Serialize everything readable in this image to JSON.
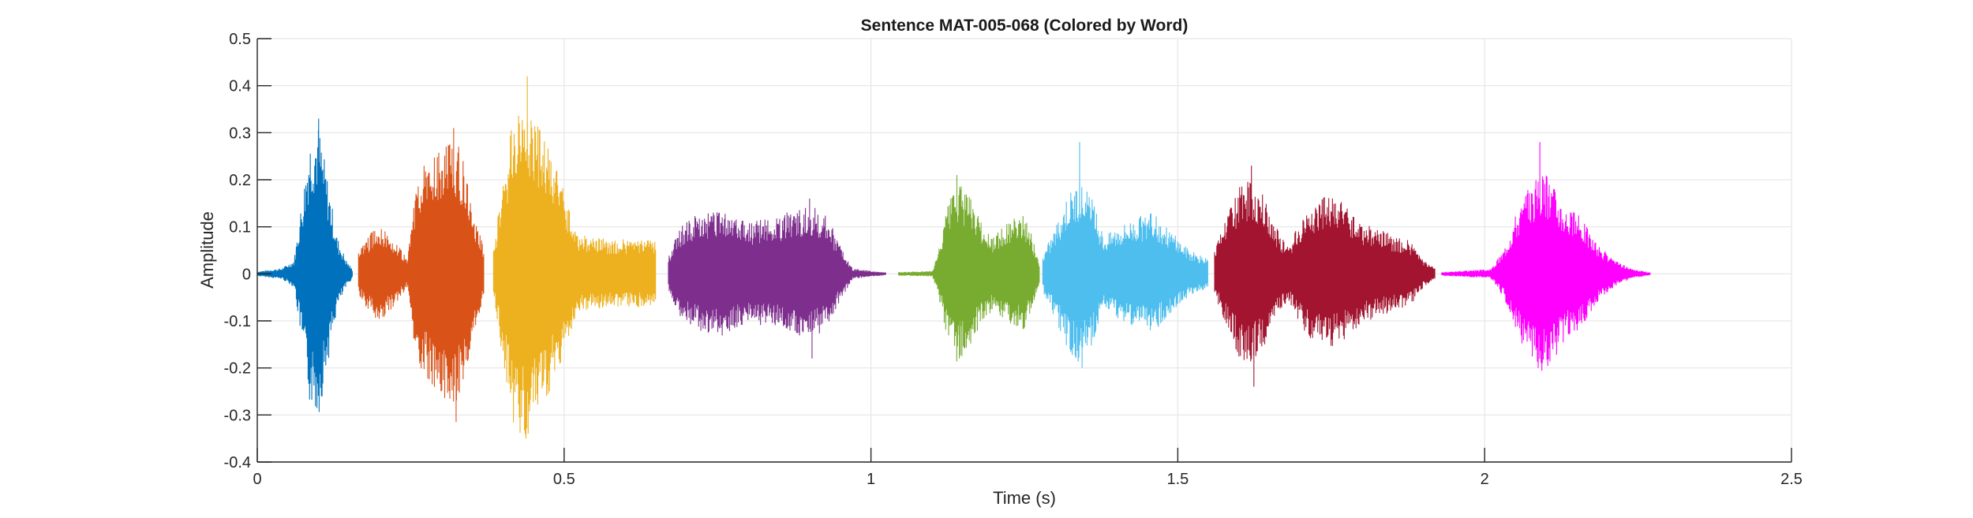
{
  "chart_data": {
    "type": "line",
    "title": "Sentence MAT-005-068 (Colored by Word)",
    "xlabel": "Time (s)",
    "ylabel": "Amplitude",
    "xlim": [
      0,
      2.5
    ],
    "ylim": [
      -0.4,
      0.5
    ],
    "xticks": [
      0,
      0.5,
      1,
      1.5,
      2,
      2.5
    ],
    "xtick_labels": [
      "0",
      "0.5",
      "1",
      "1.5",
      "2",
      "2.5"
    ],
    "yticks": [
      -0.4,
      -0.3,
      -0.2,
      -0.1,
      0,
      0.1,
      0.2,
      0.3,
      0.4,
      0.5
    ],
    "ytick_labels": [
      "-0.4",
      "-0.3",
      "-0.2",
      "-0.1",
      "0",
      "0.1",
      "0.2",
      "0.3",
      "0.4",
      "0.5"
    ],
    "grid": true,
    "series": [
      {
        "color": "#0072BD",
        "t_start": 0.0,
        "t_end": 0.155,
        "envelope": [
          [
            0.0,
            0.005
          ],
          [
            0.04,
            0.012
          ],
          [
            0.06,
            0.03
          ],
          [
            0.075,
            0.18
          ],
          [
            0.085,
            0.29
          ],
          [
            0.1,
            0.32
          ],
          [
            0.115,
            0.2
          ],
          [
            0.13,
            0.08
          ],
          [
            0.145,
            0.03
          ],
          [
            0.155,
            0.01
          ]
        ],
        "peak_max": 0.33,
        "peak_min": -0.23
      },
      {
        "color": "#D95319",
        "t_start": 0.165,
        "t_end": 0.37,
        "envelope": [
          [
            0.165,
            0.05
          ],
          [
            0.18,
            0.08
          ],
          [
            0.2,
            0.11
          ],
          [
            0.225,
            0.07
          ],
          [
            0.245,
            0.03
          ],
          [
            0.26,
            0.22
          ],
          [
            0.28,
            0.24
          ],
          [
            0.3,
            0.27
          ],
          [
            0.32,
            0.31
          ],
          [
            0.34,
            0.22
          ],
          [
            0.355,
            0.12
          ],
          [
            0.37,
            0.05
          ]
        ],
        "peak_max": 0.31,
        "peak_min": -0.315
      },
      {
        "color": "#EDB120",
        "t_start": 0.385,
        "t_end": 0.65,
        "envelope": [
          [
            0.385,
            0.05
          ],
          [
            0.4,
            0.2
          ],
          [
            0.42,
            0.36
          ],
          [
            0.44,
            0.38
          ],
          [
            0.46,
            0.32
          ],
          [
            0.48,
            0.25
          ],
          [
            0.5,
            0.18
          ],
          [
            0.52,
            0.09
          ],
          [
            0.54,
            0.08
          ],
          [
            0.58,
            0.075
          ],
          [
            0.62,
            0.075
          ],
          [
            0.65,
            0.07
          ]
        ],
        "peak_max": 0.42,
        "peak_min": -0.24
      },
      {
        "color": "#7E2F8E",
        "t_start": 0.67,
        "t_end": 1.025,
        "envelope": [
          [
            0.67,
            0.04
          ],
          [
            0.69,
            0.1
          ],
          [
            0.72,
            0.13
          ],
          [
            0.76,
            0.14
          ],
          [
            0.8,
            0.11
          ],
          [
            0.84,
            0.12
          ],
          [
            0.88,
            0.14
          ],
          [
            0.9,
            0.15
          ],
          [
            0.93,
            0.12
          ],
          [
            0.95,
            0.06
          ],
          [
            0.97,
            0.012
          ],
          [
            1.0,
            0.006
          ],
          [
            1.025,
            0.003
          ]
        ],
        "peak_max": 0.16,
        "peak_min": -0.18
      },
      {
        "color": "#77AC30",
        "t_start": 1.045,
        "t_end": 1.275,
        "envelope": [
          [
            1.045,
            0.004
          ],
          [
            1.1,
            0.006
          ],
          [
            1.11,
            0.05
          ],
          [
            1.125,
            0.15
          ],
          [
            1.14,
            0.2
          ],
          [
            1.16,
            0.17
          ],
          [
            1.18,
            0.11
          ],
          [
            1.2,
            0.08
          ],
          [
            1.23,
            0.12
          ],
          [
            1.25,
            0.13
          ],
          [
            1.265,
            0.07
          ],
          [
            1.275,
            0.02
          ]
        ],
        "peak_max": 0.21,
        "peak_min": -0.18
      },
      {
        "color": "#4DBEEE",
        "t_start": 1.28,
        "t_end": 1.55,
        "envelope": [
          [
            1.28,
            0.04
          ],
          [
            1.3,
            0.1
          ],
          [
            1.32,
            0.17
          ],
          [
            1.34,
            0.2
          ],
          [
            1.36,
            0.16
          ],
          [
            1.38,
            0.08
          ],
          [
            1.4,
            0.1
          ],
          [
            1.43,
            0.12
          ],
          [
            1.46,
            0.13
          ],
          [
            1.49,
            0.09
          ],
          [
            1.52,
            0.05
          ],
          [
            1.55,
            0.03
          ]
        ],
        "peak_max": 0.28,
        "peak_min": -0.2
      },
      {
        "color": "#A2142F",
        "t_start": 1.56,
        "t_end": 1.92,
        "envelope": [
          [
            1.56,
            0.05
          ],
          [
            1.58,
            0.12
          ],
          [
            1.6,
            0.19
          ],
          [
            1.62,
            0.2
          ],
          [
            1.64,
            0.17
          ],
          [
            1.66,
            0.1
          ],
          [
            1.68,
            0.06
          ],
          [
            1.71,
            0.14
          ],
          [
            1.74,
            0.17
          ],
          [
            1.77,
            0.15
          ],
          [
            1.8,
            0.11
          ],
          [
            1.84,
            0.09
          ],
          [
            1.88,
            0.07
          ],
          [
            1.9,
            0.03
          ],
          [
            1.92,
            0.01
          ]
        ],
        "peak_max": 0.23,
        "peak_min": -0.24
      },
      {
        "color": "#FF00FF",
        "t_start": 1.93,
        "t_end": 2.27,
        "envelope": [
          [
            1.93,
            0.004
          ],
          [
            1.98,
            0.008
          ],
          [
            2.01,
            0.01
          ],
          [
            2.03,
            0.05
          ],
          [
            2.05,
            0.13
          ],
          [
            2.07,
            0.18
          ],
          [
            2.09,
            0.22
          ],
          [
            2.11,
            0.2
          ],
          [
            2.13,
            0.15
          ],
          [
            2.16,
            0.12
          ],
          [
            2.18,
            0.07
          ],
          [
            2.21,
            0.03
          ],
          [
            2.24,
            0.01
          ],
          [
            2.27,
            0.003
          ]
        ],
        "peak_max": 0.28,
        "peak_min": -0.19
      }
    ]
  }
}
